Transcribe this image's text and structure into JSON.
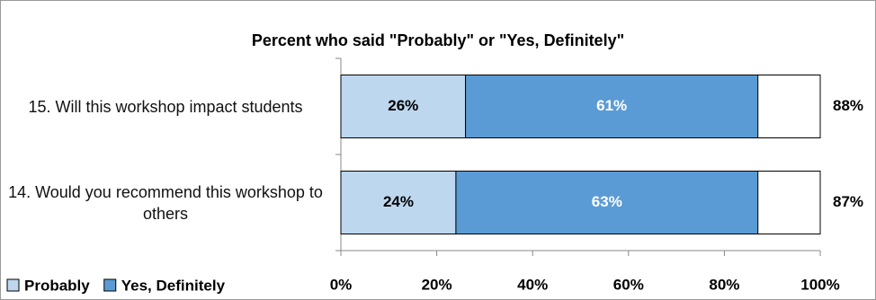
{
  "chart_data": {
    "type": "stacked-barh",
    "title": "Percent who said \"Probably\" or \"Yes, Definitely\"",
    "categories": [
      "15. Will this workshop impact students",
      "14. Would you recommend this workshop to others"
    ],
    "series": [
      {
        "name": "Probably",
        "color": "#bdd7ee",
        "values": [
          26,
          24
        ],
        "value_labels": [
          "26%",
          "24%"
        ]
      },
      {
        "name": "Yes, Definitely",
        "color": "#5b9bd5",
        "values": [
          61,
          63
        ],
        "value_labels": [
          "61%",
          "63%"
        ]
      }
    ],
    "totals": {
      "values": [
        88,
        87
      ],
      "value_labels": [
        "88%",
        "87%"
      ]
    },
    "xlim": [
      0,
      100
    ],
    "xticks": [
      {
        "value": 0,
        "label": "0%"
      },
      {
        "value": 20,
        "label": "20%"
      },
      {
        "value": 40,
        "label": "40%"
      },
      {
        "value": 60,
        "label": "60%"
      },
      {
        "value": 80,
        "label": "80%"
      },
      {
        "value": 100,
        "label": "100%"
      }
    ],
    "legend": "bottom-left"
  }
}
